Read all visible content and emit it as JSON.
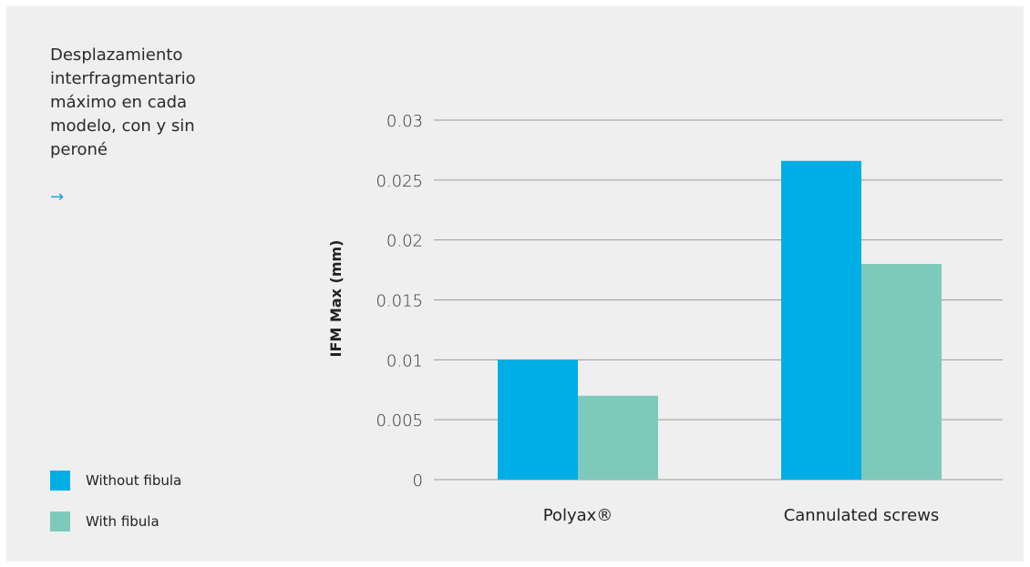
{
  "title": "Desplazamiento interfragmentario máximo en cada modelo, con y sin peroné",
  "arrow": "→",
  "colors": {
    "without_fibula": "#00aee6",
    "with_fibula": "#7dcabd",
    "grid": "#9a9a9a",
    "background": "#efefef",
    "arrow": "#1aa7e0"
  },
  "legend": [
    {
      "label": "Without fibula",
      "color": "#00aee6"
    },
    {
      "label": "With fibula",
      "color": "#7dcabd"
    }
  ],
  "chart_data": {
    "type": "bar",
    "categories": [
      "Polyax®",
      "Cannulated screws"
    ],
    "series": [
      {
        "name": "Without fibula",
        "values": [
          0.01,
          0.0266
        ]
      },
      {
        "name": "With fibula",
        "values": [
          0.007,
          0.018
        ]
      }
    ],
    "ylabel": "IFM Max (mm)",
    "xlabel": "",
    "ylim": [
      0,
      0.03
    ],
    "yticks": [
      0,
      0.005,
      0.01,
      0.015,
      0.02,
      0.025,
      0.03
    ],
    "ytick_labels": [
      "0",
      "0.005",
      "0.01",
      "0.015",
      "0.02",
      "0.025",
      "0.03"
    ],
    "grid": true,
    "legend_position": "bottom-left"
  }
}
